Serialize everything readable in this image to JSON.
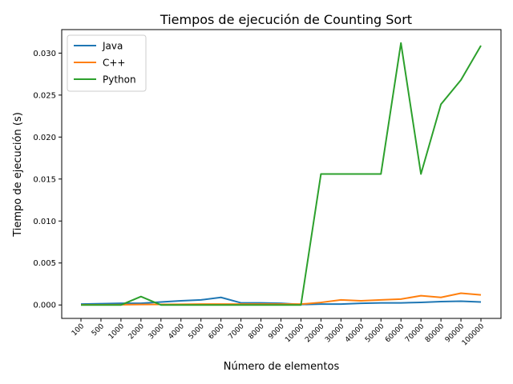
{
  "chart_data": {
    "type": "line",
    "title": "Tiempos de ejecución de Counting Sort",
    "xlabel": "Número de elementos",
    "ylabel": "Tiempo de ejecución (s)",
    "categories": [
      "100",
      "500",
      "1000",
      "2000",
      "3000",
      "4000",
      "5000",
      "6000",
      "7000",
      "8000",
      "9000",
      "10000",
      "20000",
      "30000",
      "40000",
      "50000",
      "60000",
      "70000",
      "80000",
      "90000",
      "100000"
    ],
    "ylim": [
      -0.0016,
      0.0328
    ],
    "yticks": [
      0.0,
      0.005,
      0.01,
      0.015,
      0.02,
      0.025,
      0.03
    ],
    "ytick_labels": [
      "0.000",
      "0.005",
      "0.010",
      "0.015",
      "0.020",
      "0.025",
      "0.030"
    ],
    "legend_position": "top-left",
    "grid": false,
    "series": [
      {
        "name": "Java",
        "color": "#1f77b4",
        "values": [
          0.0001,
          0.00015,
          0.0002,
          0.0002,
          0.00035,
          0.0005,
          0.0006,
          0.0009,
          0.00025,
          0.00025,
          0.0002,
          5e-05,
          0.0001,
          0.0001,
          0.0002,
          0.00025,
          0.00025,
          0.0003,
          0.0004,
          0.00045,
          0.00035
        ]
      },
      {
        "name": "C++",
        "color": "#ff7f0e",
        "values": [
          2e-05,
          2e-05,
          3e-05,
          5e-05,
          7e-05,
          8e-05,
          0.0001,
          0.0001,
          0.0001,
          0.0001,
          0.0001,
          0.0001,
          0.0003,
          0.0006,
          0.0005,
          0.0006,
          0.0007,
          0.0011,
          0.0009,
          0.0014,
          0.0012
        ]
      },
      {
        "name": "Python",
        "color": "#2ca02c",
        "values": [
          0.0,
          0.0,
          0.0,
          0.001,
          0.0,
          0.0,
          0.0,
          0.0,
          0.0,
          0.0,
          0.0,
          0.0,
          0.0156,
          0.0156,
          0.0156,
          0.0156,
          0.0312,
          0.0156,
          0.0239,
          0.0268,
          0.0309
        ]
      }
    ]
  }
}
